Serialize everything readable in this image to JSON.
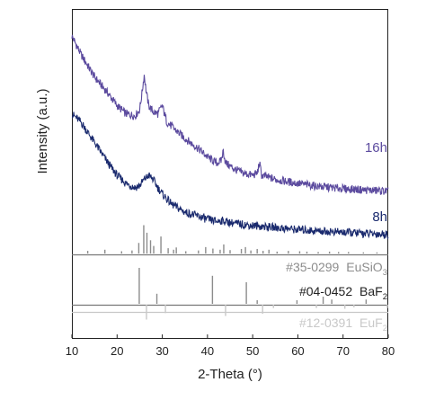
{
  "chart_data": {
    "type": "line",
    "xlabel": "2-Theta (°)",
    "ylabel": "Intensity (a.u.)",
    "xlim": [
      10,
      80
    ],
    "x_ticks": [
      "10",
      "20",
      "30",
      "40",
      "50",
      "60",
      "70",
      "80"
    ],
    "y_ticks_shown": false,
    "grid": false,
    "series": [
      {
        "name": "16h",
        "color": "#5b4a9e",
        "x": [
          10,
          12,
          15,
          18,
          20,
          22,
          24,
          25,
          25.5,
          26,
          26.5,
          27,
          28,
          29,
          30,
          30.5,
          31,
          33,
          35,
          38,
          40,
          42,
          43,
          43.5,
          44,
          46,
          48,
          50,
          51,
          51.5,
          52,
          55,
          60,
          65,
          70,
          75,
          80
        ],
        "y": [
          100,
          91,
          80,
          72,
          66,
          62,
          61,
          64,
          72,
          81,
          72,
          66,
          63,
          62,
          66,
          62,
          58,
          54,
          50,
          45,
          41,
          38,
          39,
          44,
          38,
          35,
          33,
          32,
          33,
          38,
          32,
          30,
          28,
          26.5,
          25.5,
          24.8,
          24.2
        ]
      },
      {
        "name": "8h",
        "color": "#1a2a6e",
        "x": [
          10,
          12,
          15,
          18,
          20,
          22,
          24,
          25,
          26,
          27,
          28,
          29,
          30,
          32,
          35,
          38,
          40,
          42,
          43,
          44,
          46,
          48,
          50,
          55,
          60,
          65,
          70,
          75,
          80
        ],
        "y": [
          62,
          58,
          48,
          38,
          32,
          28,
          26,
          27,
          30,
          32,
          30,
          26,
          23,
          18,
          14,
          12,
          10.5,
          9.5,
          10,
          9.5,
          8.5,
          8,
          7.5,
          6.5,
          5.5,
          4.8,
          4.2,
          3.6,
          3.2
        ]
      }
    ],
    "reference_patterns": [
      {
        "id": "#35-0299",
        "formula_main": "EuSiO",
        "formula_sub": "3",
        "color": "#8c8c8c",
        "label_color": "#8c8c8c",
        "peaks": [
          {
            "x": 13.5,
            "i": 0.07
          },
          {
            "x": 17.3,
            "i": 0.1
          },
          {
            "x": 21.0,
            "i": 0.06
          },
          {
            "x": 23.3,
            "i": 0.08
          },
          {
            "x": 24.8,
            "i": 0.28
          },
          {
            "x": 25.9,
            "i": 0.75
          },
          {
            "x": 26.6,
            "i": 0.55
          },
          {
            "x": 27.4,
            "i": 0.35
          },
          {
            "x": 28.1,
            "i": 0.2
          },
          {
            "x": 29.7,
            "i": 0.45
          },
          {
            "x": 31.3,
            "i": 0.14
          },
          {
            "x": 32.5,
            "i": 0.1
          },
          {
            "x": 33.1,
            "i": 0.16
          },
          {
            "x": 35.2,
            "i": 0.06
          },
          {
            "x": 38.0,
            "i": 0.08
          },
          {
            "x": 39.6,
            "i": 0.17
          },
          {
            "x": 41.2,
            "i": 0.13
          },
          {
            "x": 42.8,
            "i": 0.1
          },
          {
            "x": 43.6,
            "i": 0.24
          },
          {
            "x": 45.0,
            "i": 0.09
          },
          {
            "x": 47.5,
            "i": 0.12
          },
          {
            "x": 48.4,
            "i": 0.17
          },
          {
            "x": 49.6,
            "i": 0.08
          },
          {
            "x": 51.0,
            "i": 0.12
          },
          {
            "x": 52.3,
            "i": 0.07
          },
          {
            "x": 53.6,
            "i": 0.1
          },
          {
            "x": 55.4,
            "i": 0.05
          },
          {
            "x": 57.9,
            "i": 0.07
          },
          {
            "x": 60.4,
            "i": 0.06
          },
          {
            "x": 62.0,
            "i": 0.05
          },
          {
            "x": 64.5,
            "i": 0.04
          },
          {
            "x": 67.0,
            "i": 0.05
          },
          {
            "x": 69.0,
            "i": 0.04
          },
          {
            "x": 71.2,
            "i": 0.04
          },
          {
            "x": 74.5,
            "i": 0.03
          },
          {
            "x": 77.5,
            "i": 0.03
          }
        ]
      },
      {
        "id": "#04-0452",
        "formula_main": "BaF",
        "formula_sub": "2",
        "color": "#8c8c8c",
        "label_color": "#222222",
        "peaks": [
          {
            "x": 24.9,
            "i": 1.0
          },
          {
            "x": 28.8,
            "i": 0.28
          },
          {
            "x": 41.1,
            "i": 0.78
          },
          {
            "x": 48.6,
            "i": 0.6
          },
          {
            "x": 51.0,
            "i": 0.1
          },
          {
            "x": 59.8,
            "i": 0.1
          },
          {
            "x": 65.6,
            "i": 0.2
          },
          {
            "x": 67.5,
            "i": 0.12
          },
          {
            "x": 75.1,
            "i": 0.12
          }
        ]
      },
      {
        "id": "#12-0391",
        "formula_main": "EuF",
        "formula_sub": "2",
        "color": "#c8c8c8",
        "label_color": "#c8c8c8",
        "peaks": [
          {
            "x": 26.5,
            "i": 1.0
          },
          {
            "x": 30.7,
            "i": 0.55
          },
          {
            "x": 44.0,
            "i": 0.75
          },
          {
            "x": 52.2,
            "i": 0.6
          },
          {
            "x": 54.6,
            "i": 0.2
          },
          {
            "x": 64.1,
            "i": 0.2
          },
          {
            "x": 70.4,
            "i": 0.25
          },
          {
            "x": 72.4,
            "i": 0.15
          },
          {
            "x": 79.8,
            "i": 0.2
          }
        ]
      }
    ]
  }
}
